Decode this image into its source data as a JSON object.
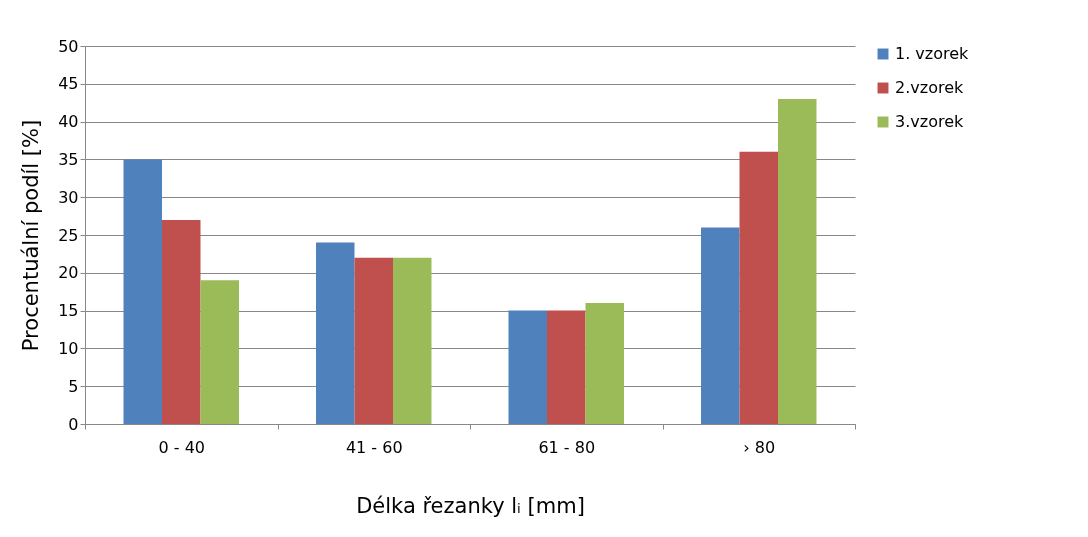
{
  "chart_data": {
    "type": "bar",
    "xlabel": "Délka řezanky lᵢ [mm]",
    "ylabel": "Procentuální podíl [%]",
    "categories": [
      "0 - 40",
      "41 - 60",
      "61 - 80",
      "› 80"
    ],
    "series": [
      {
        "name": "1. vzorek",
        "color": "#4f81bd",
        "values": [
          35,
          24,
          15,
          26
        ]
      },
      {
        "name": "2.vzorek",
        "color": "#c0504d",
        "values": [
          27,
          22,
          15,
          36
        ]
      },
      {
        "name": "3.vzorek",
        "color": "#9bbb59",
        "values": [
          19,
          22,
          16,
          43
        ]
      }
    ],
    "ylim": [
      0,
      50
    ],
    "yticks": [
      0,
      5,
      10,
      15,
      20,
      25,
      30,
      35,
      40,
      45,
      50
    ],
    "grid": "y",
    "legend": "right"
  }
}
